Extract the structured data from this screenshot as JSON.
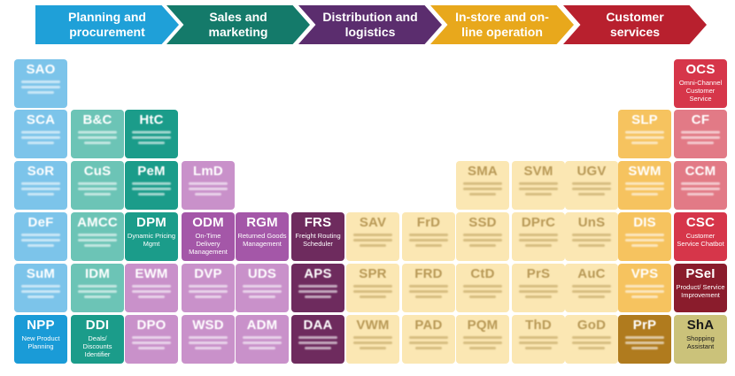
{
  "stages": [
    {
      "label": "Planning and procurement",
      "color": "#1fa0d8"
    },
    {
      "label": "Sales and marketing",
      "color": "#147a6a"
    },
    {
      "label": "Distribution and logistics",
      "color": "#5b2d6e"
    },
    {
      "label": "In-store and on-line operation",
      "color": "#e8a81c"
    },
    {
      "label": "Customer services",
      "color": "#b8202e"
    }
  ],
  "tiles": [
    {
      "sym": "SAO",
      "name": "",
      "group": "blue",
      "blur": true
    },
    {
      "sym": "OCS",
      "name": "Omni-Channel Customer Service",
      "group": "red",
      "blur": false
    },
    {
      "sym": "SCA",
      "name": "",
      "group": "blue",
      "blur": true
    },
    {
      "sym": "B&C",
      "name": "",
      "group": "teal",
      "blur": true
    },
    {
      "sym": "HtC",
      "name": "",
      "group": "teal",
      "blur": true
    },
    {
      "sym": "SLP",
      "name": "",
      "group": "amber",
      "blur": true
    },
    {
      "sym": "CF",
      "name": "",
      "group": "red",
      "blur": true
    },
    {
      "sym": "SoR",
      "name": "",
      "group": "blue",
      "blur": true
    },
    {
      "sym": "CuS",
      "name": "",
      "group": "teal",
      "blur": true
    },
    {
      "sym": "PeM",
      "name": "",
      "group": "teal",
      "blur": true
    },
    {
      "sym": "LmD",
      "name": "",
      "group": "purple",
      "blur": true
    },
    {
      "sym": "SMA",
      "name": "",
      "group": "cream",
      "blur": true
    },
    {
      "sym": "SVM",
      "name": "",
      "group": "cream",
      "blur": true
    },
    {
      "sym": "UGV",
      "name": "",
      "group": "cream",
      "blur": true
    },
    {
      "sym": "SWM",
      "name": "",
      "group": "amber",
      "blur": true
    },
    {
      "sym": "CCM",
      "name": "",
      "group": "red",
      "blur": true
    },
    {
      "sym": "DeF",
      "name": "",
      "group": "blue",
      "blur": true
    },
    {
      "sym": "AMCC",
      "name": "",
      "group": "teal",
      "blur": true
    },
    {
      "sym": "DPM",
      "name": "Dynamic Pricing Mgmt",
      "group": "teal",
      "blur": false
    },
    {
      "sym": "ODM",
      "name": "On-Time Delivery Management",
      "group": "purple",
      "blur": false
    },
    {
      "sym": "RGM",
      "name": "Returned Goods Management",
      "group": "purple",
      "blur": false
    },
    {
      "sym": "FRS",
      "name": "Freight Routing Scheduler",
      "group": "plum",
      "blur": false
    },
    {
      "sym": "SAV",
      "name": "",
      "group": "cream",
      "blur": true
    },
    {
      "sym": "FrD",
      "name": "",
      "group": "cream",
      "blur": true
    },
    {
      "sym": "SSD",
      "name": "",
      "group": "cream",
      "blur": true
    },
    {
      "sym": "DPrC",
      "name": "",
      "group": "cream",
      "blur": true
    },
    {
      "sym": "UnS",
      "name": "",
      "group": "cream",
      "blur": true
    },
    {
      "sym": "DIS",
      "name": "",
      "group": "amber",
      "blur": true
    },
    {
      "sym": "CSC",
      "name": "Customer Service Chatbot",
      "group": "red",
      "blur": false
    },
    {
      "sym": "SuM",
      "name": "",
      "group": "blue",
      "blur": true
    },
    {
      "sym": "IDM",
      "name": "",
      "group": "teal",
      "blur": true
    },
    {
      "sym": "EWM",
      "name": "",
      "group": "purple",
      "blur": true
    },
    {
      "sym": "DVP",
      "name": "",
      "group": "purple",
      "blur": true
    },
    {
      "sym": "UDS",
      "name": "",
      "group": "purple",
      "blur": true
    },
    {
      "sym": "APS",
      "name": "",
      "group": "plum",
      "blur": true
    },
    {
      "sym": "SPR",
      "name": "",
      "group": "cream",
      "blur": true
    },
    {
      "sym": "FRD",
      "name": "",
      "group": "cream",
      "blur": true
    },
    {
      "sym": "CtD",
      "name": "",
      "group": "cream",
      "blur": true
    },
    {
      "sym": "PrS",
      "name": "",
      "group": "cream",
      "blur": true
    },
    {
      "sym": "AuC",
      "name": "",
      "group": "cream",
      "blur": true
    },
    {
      "sym": "VPS",
      "name": "",
      "group": "amber",
      "blur": true
    },
    {
      "sym": "PSeI",
      "name": "Product/ Service Improvement",
      "group": "darkred",
      "blur": false
    },
    {
      "sym": "NPP",
      "name": "New Product Planning",
      "group": "blue",
      "blur": false
    },
    {
      "sym": "DDI",
      "name": "Deals/ Discounts Identifier",
      "group": "teal",
      "blur": false
    },
    {
      "sym": "DPO",
      "name": "",
      "group": "purple",
      "blur": true
    },
    {
      "sym": "WSD",
      "name": "",
      "group": "purple",
      "blur": true
    },
    {
      "sym": "ADM",
      "name": "",
      "group": "purple",
      "blur": true
    },
    {
      "sym": "DAA",
      "name": "",
      "group": "plum",
      "blur": true
    },
    {
      "sym": "VWM",
      "name": "",
      "group": "cream",
      "blur": true
    },
    {
      "sym": "PAD",
      "name": "",
      "group": "cream",
      "blur": true
    },
    {
      "sym": "PQM",
      "name": "",
      "group": "cream",
      "blur": true
    },
    {
      "sym": "ThD",
      "name": "",
      "group": "cream",
      "blur": true
    },
    {
      "sym": "GoD",
      "name": "",
      "group": "cream",
      "blur": true
    },
    {
      "sym": "PrP",
      "name": "",
      "group": "brown",
      "blur": true
    },
    {
      "sym": "ShA",
      "name": "Shopping Assistant",
      "group": "olive",
      "blur": false
    }
  ],
  "colors": {
    "blue": "#1a9bd7",
    "teal": "#1b9c8a",
    "purple": "#a457a8",
    "plum": "#6e2b5e",
    "cream": "#fbe7b3",
    "amber": "#f2a51d",
    "red": "#d6364a",
    "darkred": "#8a1c2c",
    "brown": "#b07b1e",
    "olive": "#cbc27a"
  }
}
